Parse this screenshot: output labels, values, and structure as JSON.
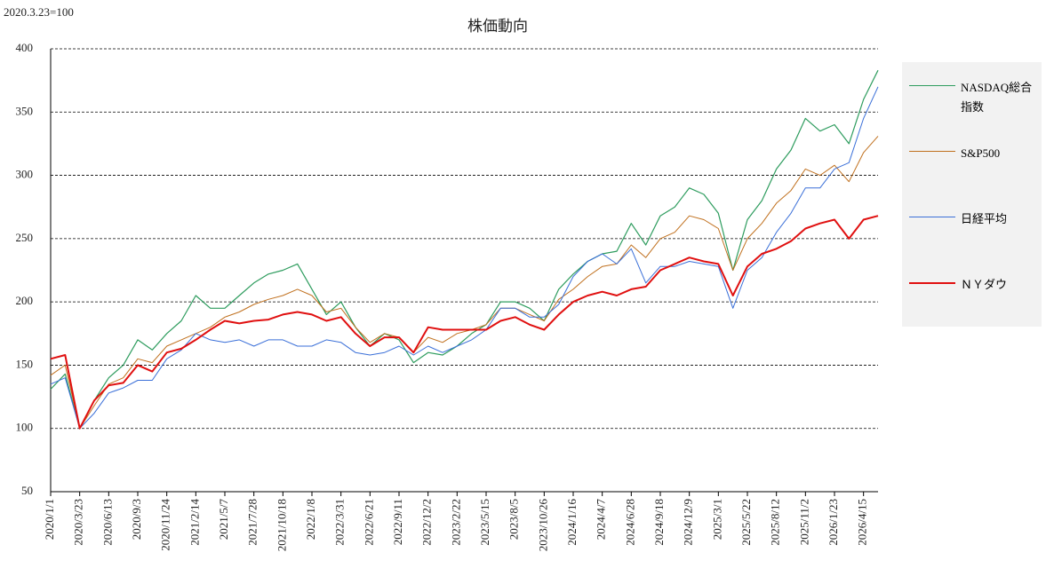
{
  "chart_data": {
    "type": "line",
    "title": "株価動向",
    "annotation": "2020.3.23=100",
    "categories": [
      "2020/1/1",
      null,
      "2020/3/23",
      null,
      "2020/6/13",
      null,
      "2020/9/3",
      null,
      "2020/11/24",
      null,
      "2021/2/14",
      null,
      "2021/5/7",
      null,
      "2021/7/28",
      null,
      "2021/10/18",
      null,
      "2022/1/8",
      null,
      "2022/3/31",
      null,
      "2022/6/21",
      null,
      "2022/9/11",
      null,
      "2022/12/2",
      null,
      "2023/2/22",
      null,
      "2023/5/15",
      null,
      "2023/8/5",
      null,
      "2023/10/26",
      null,
      "2024/1/16",
      null,
      "2024/4/7",
      null,
      "2024/6/28",
      null,
      "2024/9/18",
      null,
      "2024/12/9",
      null,
      "2025/3/1",
      null,
      "2025/5/22",
      null,
      "2025/8/12",
      null,
      "2025/11/2",
      null,
      "2026/1/23",
      null,
      "2026/4/15",
      null
    ],
    "series": [
      {
        "name": "NASDAQ総合指数",
        "color": "#2e9c5e",
        "width": 1.2,
        "values": [
          131,
          143,
          100,
          122,
          140,
          150,
          170,
          162,
          175,
          185,
          205,
          195,
          195,
          205,
          215,
          222,
          225,
          230,
          210,
          190,
          200,
          180,
          165,
          175,
          170,
          152,
          160,
          158,
          165,
          175,
          182,
          200,
          200,
          195,
          185,
          210,
          222,
          232,
          238,
          240,
          262,
          245,
          268,
          275,
          290,
          285,
          270,
          225,
          265,
          280,
          305,
          320,
          345,
          335,
          340,
          325,
          360,
          383
        ]
      },
      {
        "name": "S&P500",
        "color": "#c0701e",
        "width": 1,
        "values": [
          142,
          150,
          100,
          118,
          135,
          140,
          155,
          152,
          165,
          170,
          175,
          180,
          188,
          192,
          198,
          202,
          205,
          210,
          205,
          192,
          195,
          180,
          168,
          175,
          172,
          160,
          172,
          168,
          175,
          178,
          182,
          195,
          195,
          190,
          185,
          202,
          210,
          220,
          228,
          230,
          245,
          235,
          250,
          255,
          268,
          265,
          258,
          225,
          250,
          262,
          278,
          288,
          305,
          300,
          308,
          295,
          318,
          331
        ]
      },
      {
        "name": "日経平均",
        "color": "#3a6fd8",
        "width": 1,
        "values": [
          135,
          140,
          100,
          112,
          128,
          132,
          138,
          138,
          155,
          162,
          175,
          170,
          168,
          170,
          165,
          170,
          170,
          165,
          165,
          170,
          168,
          160,
          158,
          160,
          165,
          158,
          165,
          160,
          165,
          170,
          178,
          195,
          195,
          188,
          188,
          198,
          220,
          232,
          238,
          230,
          242,
          215,
          228,
          228,
          232,
          230,
          228,
          195,
          225,
          235,
          255,
          270,
          290,
          290,
          305,
          310,
          345,
          370
        ]
      },
      {
        "name": "ＮＹダウ",
        "color": "#e01010",
        "width": 2,
        "values": [
          155,
          158,
          100,
          122,
          134,
          136,
          150,
          145,
          160,
          163,
          170,
          178,
          185,
          183,
          185,
          186,
          190,
          192,
          190,
          185,
          188,
          175,
          165,
          172,
          172,
          160,
          180,
          178,
          178,
          178,
          178,
          185,
          188,
          182,
          178,
          190,
          200,
          205,
          208,
          205,
          210,
          212,
          225,
          230,
          235,
          232,
          230,
          205,
          228,
          238,
          242,
          248,
          258,
          262,
          265,
          250,
          265,
          268
        ]
      }
    ],
    "ylim": [
      50,
      400
    ],
    "yticks": [
      50,
      100,
      150,
      200,
      250,
      300,
      350,
      400
    ],
    "grid": true,
    "legend": "right"
  }
}
